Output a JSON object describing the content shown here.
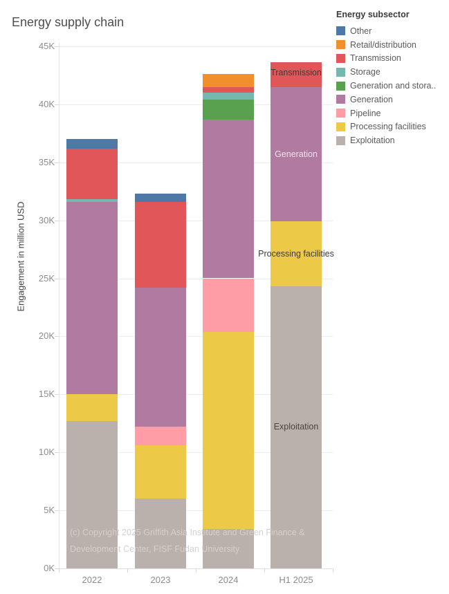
{
  "title": "Energy supply chain",
  "chart_data": {
    "type": "bar",
    "stacked": true,
    "title": "Energy supply chain",
    "xlabel": "",
    "ylabel": "Engagement in million USD",
    "unit_note": "axis values in thousands (K) of million USD",
    "ylim": [
      0,
      45000
    ],
    "ytick_step_k": 5,
    "ytick_labels": [
      "0K",
      "5K",
      "10K",
      "15K",
      "20K",
      "25K",
      "30K",
      "35K",
      "40K",
      "45K"
    ],
    "grid": "horizontal",
    "legend_position": "top-right",
    "categories": [
      "2022",
      "2023",
      "2024",
      "H1 2025"
    ],
    "series": [
      {
        "name": "Exploitation",
        "color": "#bab0ac",
        "values_k": [
          12.7,
          6.0,
          3.4,
          24.3
        ]
      },
      {
        "name": "Processing facilities",
        "color": "#edc948",
        "values_k": [
          2.3,
          4.6,
          17.0,
          5.6
        ]
      },
      {
        "name": "Pipeline",
        "color": "#ff9da7",
        "values_k": [
          0,
          1.6,
          4.6,
          0
        ]
      },
      {
        "name": "Generation",
        "color": "#b07aa1",
        "values_k": [
          16.6,
          12.0,
          13.7,
          11.6
        ]
      },
      {
        "name": "Generation and storage",
        "color": "#59a14f",
        "values_k": [
          0,
          0,
          1.7,
          0
        ]
      },
      {
        "name": "Storage",
        "color": "#76b7b2",
        "values_k": [
          0.2,
          0,
          0.6,
          0
        ]
      },
      {
        "name": "Transmission",
        "color": "#e15759",
        "values_k": [
          4.4,
          7.4,
          0.5,
          2.1
        ]
      },
      {
        "name": "Retail/distribution",
        "color": "#f28e2b",
        "values_k": [
          0,
          0,
          1.1,
          0
        ]
      },
      {
        "name": "Other",
        "color": "#4e79a7",
        "values_k": [
          0.8,
          0.7,
          0,
          0
        ]
      }
    ],
    "totals_k": [
      37.0,
      32.3,
      42.6,
      43.6
    ],
    "annotations": [
      {
        "label": "Transmission",
        "category": "H1 2025",
        "y_k": 42.7,
        "text_color": "#3b3b3b"
      },
      {
        "label": "Generation",
        "category": "H1 2025",
        "y_k": 35.7,
        "text_color": "#efe4ec"
      },
      {
        "label": "Processing facilities",
        "category": "H1 2025",
        "y_k": 27.1,
        "text_color": "#3b3b3b"
      },
      {
        "label": "Exploitation",
        "category": "H1 2025",
        "y_k": 12.2,
        "text_color": "#4a4542"
      }
    ]
  },
  "legend": {
    "title": "Energy subsector",
    "items": [
      {
        "label": "Other",
        "color": "#4e79a7"
      },
      {
        "label": "Retail/distribution",
        "color": "#f28e2b"
      },
      {
        "label": "Transmission",
        "color": "#e15759"
      },
      {
        "label": "Storage",
        "color": "#76b7b2"
      },
      {
        "label": "Generation and stora..",
        "color": "#59a14f"
      },
      {
        "label": "Generation",
        "color": "#b07aa1"
      },
      {
        "label": "Pipeline",
        "color": "#ff9da7"
      },
      {
        "label": "Processing facilities",
        "color": "#edc948"
      },
      {
        "label": "Exploitation",
        "color": "#bab0ac"
      }
    ]
  },
  "footer": {
    "copyright_line1": "(c) Copyright 2025 Griffith Asia Institute and Green Finance &",
    "copyright_line2": "Development Center, FISF Fudan University"
  }
}
